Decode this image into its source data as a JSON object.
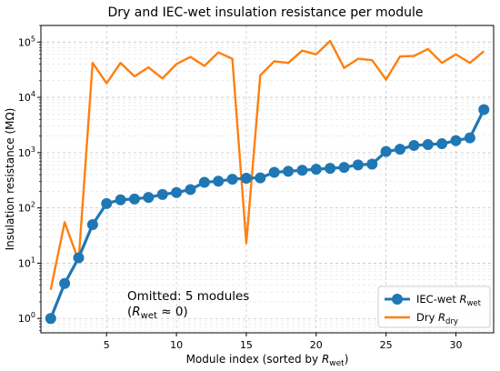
{
  "chart_data": {
    "type": "line",
    "title": "Dry and IEC-wet insulation resistance per module",
    "xlabel": "Module index (sorted by R_wet)",
    "ylabel": "Insulation resistance (MΩ)",
    "xlim": [
      0.3,
      32.7
    ],
    "ylim": [
      0.55,
      200000
    ],
    "yscale": "log",
    "grid": true,
    "legend_position": "lower-right",
    "x_ticks": [
      5,
      10,
      15,
      20,
      25,
      30
    ],
    "y_ticks": [
      1,
      10,
      100,
      1000,
      10000,
      100000
    ],
    "colors": {
      "wet": "#1f77b4",
      "dry": "#ff7f0e"
    },
    "x": [
      1,
      2,
      3,
      4,
      5,
      6,
      7,
      8,
      9,
      10,
      11,
      12,
      13,
      14,
      15,
      16,
      17,
      18,
      19,
      20,
      21,
      22,
      23,
      24,
      25,
      26,
      27,
      28,
      29,
      30,
      31,
      32
    ],
    "series": [
      {
        "name": "IEC-wet R_wet",
        "key": "wet",
        "marker": "circle",
        "values": [
          1.0,
          4.3,
          12.5,
          50,
          120,
          140,
          145,
          155,
          175,
          190,
          215,
          290,
          305,
          330,
          345,
          350,
          440,
          460,
          480,
          500,
          520,
          540,
          600,
          620,
          1050,
          1150,
          1350,
          1400,
          1450,
          1650,
          1850,
          6000
        ]
      },
      {
        "name": "Dry R_dry",
        "key": "dry",
        "marker": "none",
        "values": [
          3.3,
          55,
          11,
          42000,
          18000,
          42000,
          24000,
          35000,
          22000,
          40000,
          54000,
          37000,
          65000,
          50000,
          23,
          25000,
          45000,
          42000,
          70000,
          60000,
          105000,
          34000,
          50000,
          47000,
          21000,
          55000,
          56000,
          75000,
          42000,
          60000,
          42000,
          68000
        ]
      }
    ],
    "annotation": {
      "line1": "Omitted: 5 modules",
      "line2": "(R_wet ≈ 0)"
    }
  }
}
